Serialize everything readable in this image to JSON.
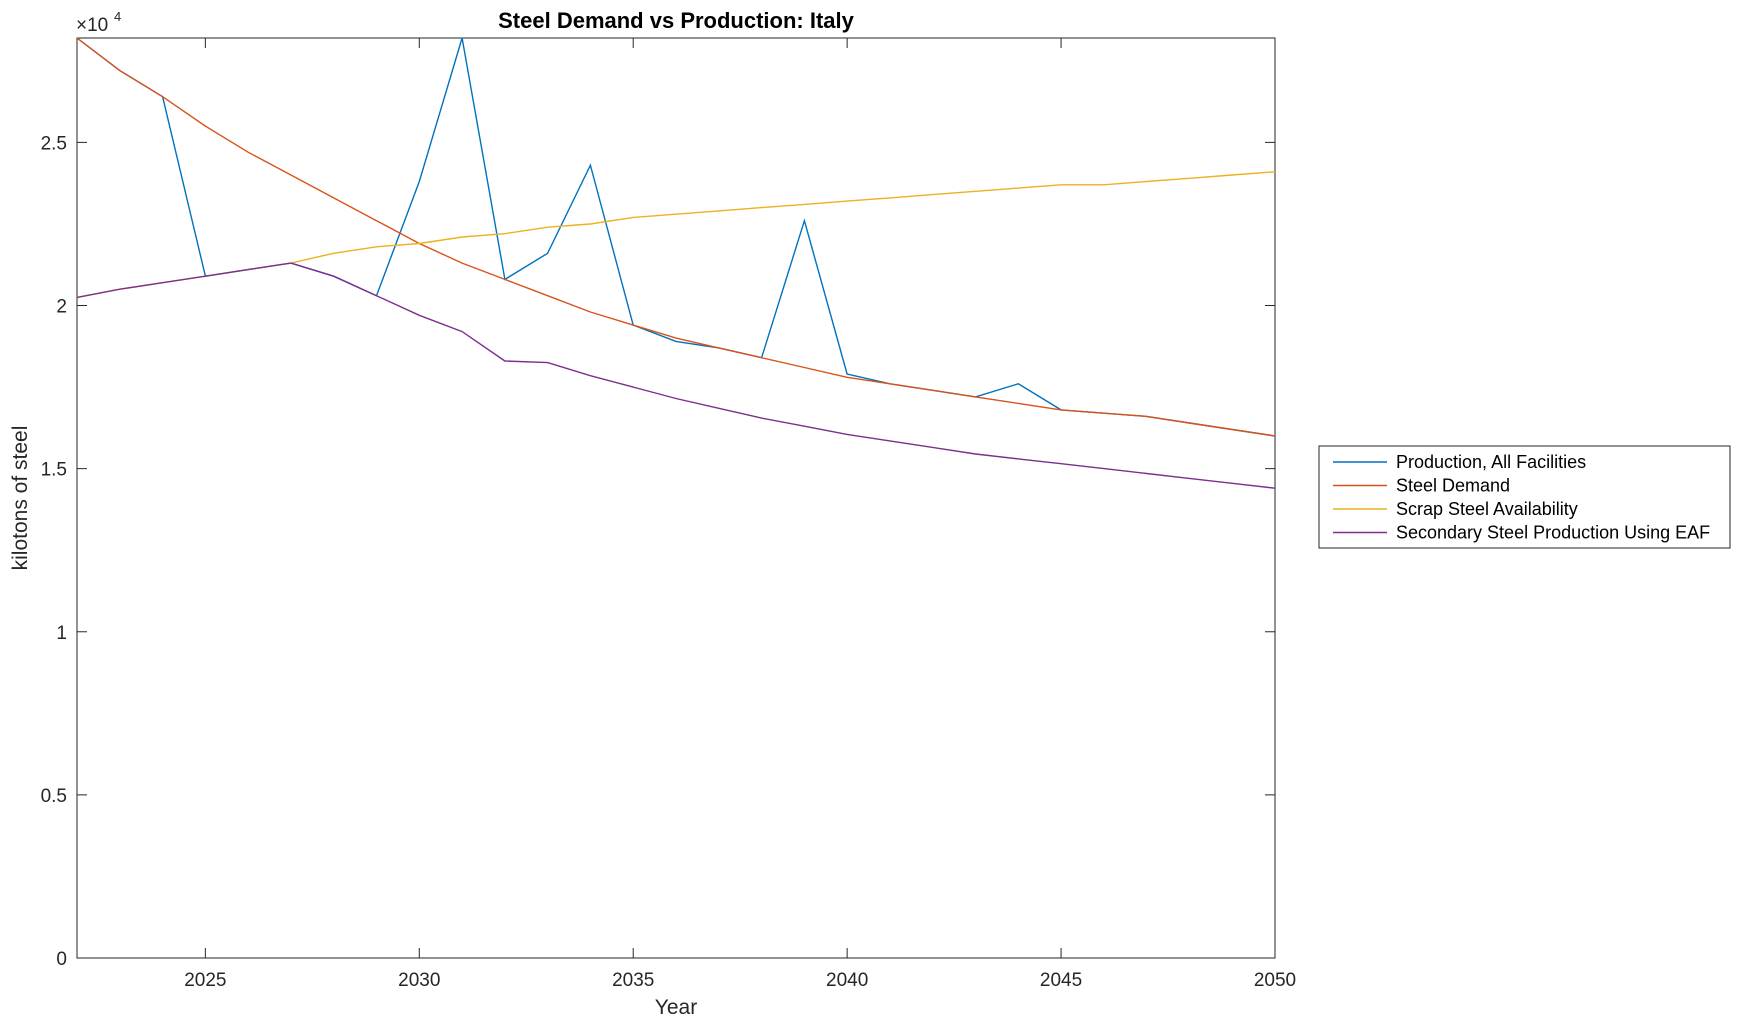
{
  "chart_data": {
    "type": "line",
    "title": "Steel Demand vs Production: Italy",
    "xlabel": "Year",
    "ylabel": "kilotons of steel",
    "y_exponent_label": "×10",
    "y_exponent_power": "4",
    "xlim": [
      2022,
      2050
    ],
    "ylim": [
      0,
      2.82
    ],
    "x_ticks": [
      2025,
      2030,
      2035,
      2040,
      2045,
      2050
    ],
    "x_tick_labels": [
      "2025",
      "2030",
      "2035",
      "2040",
      "2045",
      "2050"
    ],
    "y_ticks": [
      0,
      0.5,
      1,
      1.5,
      2,
      2.5
    ],
    "y_tick_labels": [
      "0",
      "0.5",
      "1",
      "1.5",
      "2",
      "2.5"
    ],
    "grid": false,
    "legend_position": "outside-right",
    "x": [
      2022,
      2023,
      2024,
      2025,
      2026,
      2027,
      2028,
      2029,
      2030,
      2031,
      2032,
      2033,
      2034,
      2035,
      2036,
      2037,
      2038,
      2039,
      2040,
      2041,
      2042,
      2043,
      2044,
      2045,
      2046,
      2047,
      2048,
      2049,
      2050
    ],
    "series": [
      {
        "name": "Production, All Facilities",
        "color": "#0072BD",
        "values": [
          2.82,
          2.72,
          2.64,
          2.09,
          2.11,
          2.13,
          2.09,
          2.03,
          2.38,
          2.82,
          2.08,
          2.16,
          2.43,
          1.94,
          1.89,
          1.87,
          1.84,
          2.26,
          1.79,
          1.76,
          1.74,
          1.72,
          1.76,
          1.68,
          1.67,
          1.66,
          1.64,
          1.62,
          1.6
        ]
      },
      {
        "name": "Steel Demand",
        "color": "#D95319",
        "values": [
          2.82,
          2.72,
          2.64,
          2.55,
          2.47,
          2.4,
          2.33,
          2.26,
          2.19,
          2.13,
          2.08,
          2.03,
          1.98,
          1.94,
          1.9,
          1.87,
          1.84,
          1.81,
          1.78,
          1.76,
          1.74,
          1.72,
          1.7,
          1.68,
          1.67,
          1.66,
          1.64,
          1.62,
          1.6
        ]
      },
      {
        "name": "Scrap Steel Availability",
        "color": "#EDB120",
        "values": [
          2.025,
          2.05,
          2.07,
          2.09,
          2.11,
          2.13,
          2.16,
          2.18,
          2.19,
          2.21,
          2.22,
          2.24,
          2.25,
          2.27,
          2.28,
          2.29,
          2.3,
          2.31,
          2.32,
          2.33,
          2.34,
          2.35,
          2.36,
          2.37,
          2.37,
          2.38,
          2.39,
          2.4,
          2.41
        ]
      },
      {
        "name": "Secondary Steel Production Using EAF",
        "color": "#7E2F8E",
        "values": [
          2.025,
          2.05,
          2.07,
          2.09,
          2.11,
          2.13,
          2.09,
          2.03,
          1.97,
          1.92,
          1.83,
          1.825,
          1.785,
          1.75,
          1.715,
          1.685,
          1.655,
          1.63,
          1.605,
          1.585,
          1.565,
          1.545,
          1.53,
          1.515,
          1.5,
          1.485,
          1.47,
          1.455,
          1.44
        ]
      }
    ]
  }
}
